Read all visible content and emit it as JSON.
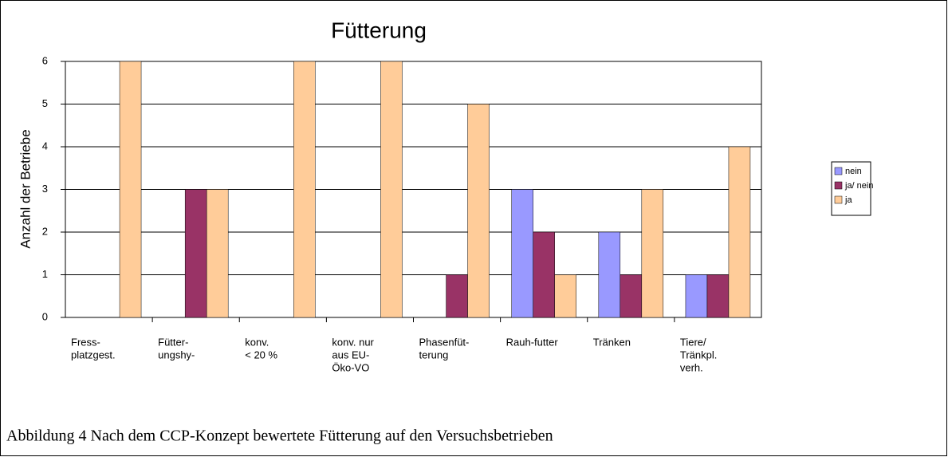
{
  "chart_data": {
    "type": "bar",
    "title": "Fütterung",
    "y_label": "Anzahl der Betriebe",
    "categories": [
      [
        "Fress-",
        "platzgest."
      ],
      [
        "Fütter-",
        "ungshy-"
      ],
      [
        "konv.",
        "< 20 %"
      ],
      [
        "konv. nur",
        "aus EU-",
        "Öko-VO"
      ],
      [
        "Phasenfüt-",
        "terung"
      ],
      [
        "Rauh-futter"
      ],
      [
        "Tränken"
      ],
      [
        "Tiere/",
        "Tränkpl.",
        "verh."
      ]
    ],
    "series": [
      {
        "name": "nein",
        "color": "#9999ff",
        "values": [
          0,
          0,
          0,
          0,
          0,
          3,
          2,
          1
        ]
      },
      {
        "name": "ja/ nein",
        "color": "#993366",
        "values": [
          0,
          3,
          0,
          0,
          1,
          2,
          1,
          1
        ]
      },
      {
        "name": "ja",
        "color": "#ffcc99",
        "values": [
          6,
          3,
          6,
          6,
          5,
          1,
          3,
          4
        ]
      }
    ],
    "ylim": [
      0,
      6
    ],
    "yticks": [
      0,
      1,
      2,
      3,
      4,
      5,
      6
    ],
    "grid": true,
    "legend": "right"
  },
  "caption": "Abbildung 4 Nach dem CCP-Konzept bewertete Fütterung auf den Versuchsbetrieben"
}
